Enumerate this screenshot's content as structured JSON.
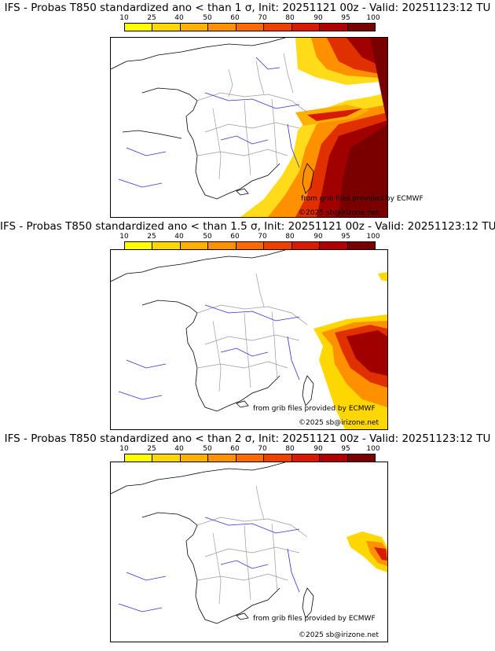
{
  "legend": {
    "ticks": [
      "10",
      "25",
      "40",
      "50",
      "60",
      "70",
      "80",
      "90",
      "95",
      "100"
    ],
    "colors": [
      "#ffff00",
      "#ffd700",
      "#ffb000",
      "#ff9000",
      "#ff6a00",
      "#f04000",
      "#d81a00",
      "#b00000",
      "#7a0000"
    ]
  },
  "panels": [
    {
      "title": "IFS - Probas T850  standardized ano < than 1 σ, Init: 20251121 00z - Valid: 20251123:12 TU",
      "credit1": "from grib files provided by ECMWF",
      "credit2": "©2025 sb@irizone.net"
    },
    {
      "title": "IFS - Probas T850  standardized ano < than 1.5 σ, Init: 20251121 00z - Valid: 20251123:12 TU",
      "credit1": "from grib files provided by ECMWF",
      "credit2": "©2025 sb@irizone.net"
    },
    {
      "title": "IFS - Probas T850  standardized ano < than 2 σ, Init: 20251121 00z - Valid: 20251123:12 TU",
      "credit1": "from grib files provided by ECMWF",
      "credit2": "©2025 sb@irizone.net"
    }
  ]
}
